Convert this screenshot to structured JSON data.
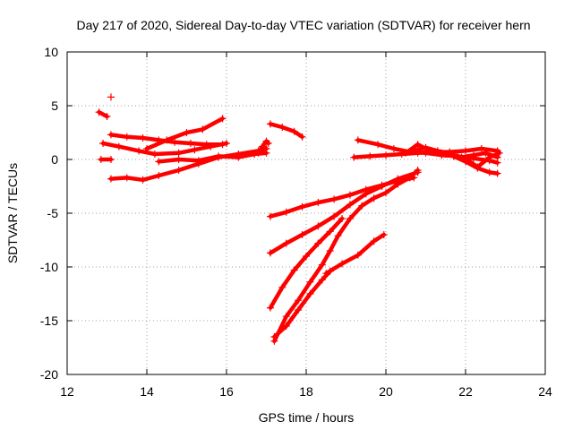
{
  "chart_data": {
    "type": "scatter",
    "title": "Day 217 of 2020, Sidereal Day-to-day VTEC variation (SDTVAR) for receiver hern",
    "xlabel": "GPS time / hours",
    "ylabel": "SDTVAR / TECUs",
    "xlim": [
      12,
      24
    ],
    "ylim": [
      -20,
      10
    ],
    "xticks": [
      "12",
      "14",
      "16",
      "18",
      "20",
      "22",
      "24"
    ],
    "yticks": [
      "-20",
      "-15",
      "-10",
      "-5",
      "0",
      "5",
      "10"
    ],
    "grid": true,
    "marker": "plus",
    "series_color": "#ff0000",
    "series": [
      {
        "x": [
          12.8,
          13.0
        ],
        "y": [
          4.4,
          4.0
        ]
      },
      {
        "x": [
          13.1
        ],
        "y": [
          5.8
        ]
      },
      {
        "x": [
          12.85,
          13.1
        ],
        "y": [
          0.0,
          0.0
        ]
      },
      {
        "x": [
          12.9,
          13.3,
          13.8,
          14.2,
          14.8,
          15.2,
          15.6,
          16.0
        ],
        "y": [
          1.5,
          1.2,
          0.8,
          0.5,
          0.6,
          0.9,
          1.2,
          1.5
        ]
      },
      {
        "x": [
          13.1,
          13.5,
          13.9,
          14.3,
          14.7,
          15.1,
          15.5,
          15.9
        ],
        "y": [
          2.3,
          2.1,
          2.0,
          1.8,
          1.6,
          1.5,
          1.4,
          1.4
        ]
      },
      {
        "x": [
          14.0,
          14.5,
          15.0,
          15.4,
          15.9
        ],
        "y": [
          1.0,
          1.8,
          2.5,
          2.8,
          3.8
        ]
      },
      {
        "x": [
          13.1,
          13.5,
          13.9,
          14.3,
          14.8,
          15.3,
          15.8,
          16.3,
          16.8,
          17.0
        ],
        "y": [
          -1.8,
          -1.7,
          -1.9,
          -1.5,
          -1.0,
          -0.4,
          0.2,
          0.5,
          0.8,
          1.0
        ]
      },
      {
        "x": [
          14.3,
          14.8,
          15.3,
          15.8,
          16.3,
          16.7,
          17.0
        ],
        "y": [
          -0.2,
          0.0,
          -0.1,
          0.3,
          0.2,
          0.5,
          0.6
        ]
      },
      {
        "x": [
          16.8,
          16.9,
          17.0,
          17.05
        ],
        "y": [
          0.6,
          1.2,
          1.7,
          1.5
        ]
      },
      {
        "x": [
          17.1,
          17.4,
          17.7,
          17.9
        ],
        "y": [
          3.3,
          3.0,
          2.6,
          2.1
        ]
      },
      {
        "x": [
          17.1,
          17.5,
          17.9,
          18.3,
          18.7,
          19.1,
          19.5,
          19.9,
          20.3,
          20.7
        ],
        "y": [
          -5.3,
          -4.9,
          -4.4,
          -4.0,
          -3.7,
          -3.3,
          -2.8,
          -2.4,
          -2.0,
          -1.7
        ]
      },
      {
        "x": [
          17.1,
          17.5,
          17.9,
          18.3,
          18.7,
          19.1,
          19.5,
          19.9,
          20.3,
          20.8
        ],
        "y": [
          -8.7,
          -7.8,
          -7.0,
          -6.2,
          -5.3,
          -4.2,
          -3.2,
          -2.5,
          -1.8,
          -1.2
        ]
      },
      {
        "x": [
          17.1,
          17.4,
          17.7,
          18.0,
          18.3,
          18.6,
          18.9
        ],
        "y": [
          -13.8,
          -11.9,
          -10.3,
          -9.0,
          -7.8,
          -6.7,
          -5.5
        ]
      },
      {
        "x": [
          17.2,
          17.5,
          17.8,
          18.1,
          18.4,
          18.6,
          18.8,
          19.1,
          19.4,
          19.7,
          20.0,
          20.3,
          20.6,
          20.8
        ],
        "y": [
          -16.9,
          -14.6,
          -13.1,
          -11.4,
          -9.8,
          -8.5,
          -7.1,
          -5.5,
          -4.3,
          -3.6,
          -3.1,
          -2.3,
          -1.7,
          -1.0
        ]
      },
      {
        "x": [
          17.2,
          17.5,
          17.8,
          18.1,
          18.4,
          18.6
        ],
        "y": [
          -16.5,
          -15.5,
          -14.0,
          -12.5,
          -11.2,
          -10.4
        ]
      },
      {
        "x": [
          18.5,
          18.9,
          19.3,
          19.7,
          19.95
        ],
        "y": [
          -10.6,
          -9.7,
          -8.9,
          -7.6,
          -7.0
        ]
      },
      {
        "x": [
          19.3,
          19.8,
          20.2,
          20.6,
          21.0,
          21.4,
          21.8,
          22.2,
          22.6,
          22.8
        ],
        "y": [
          1.8,
          1.4,
          1.0,
          0.7,
          0.6,
          0.4,
          0.3,
          0.1,
          -0.1,
          -0.3
        ]
      },
      {
        "x": [
          19.2,
          19.6,
          20.0,
          20.4,
          20.8,
          21.2,
          21.6,
          22.0,
          22.4,
          22.8
        ],
        "y": [
          0.2,
          0.3,
          0.4,
          0.5,
          0.6,
          0.7,
          0.7,
          0.8,
          1.0,
          0.8
        ]
      },
      {
        "x": [
          20.5,
          20.8,
          21.1,
          21.4,
          21.7,
          22.0,
          22.3,
          22.6,
          22.8
        ],
        "y": [
          0.6,
          1.4,
          0.8,
          0.6,
          0.3,
          -0.2,
          -0.8,
          -1.2,
          -1.3
        ]
      },
      {
        "x": [
          20.7,
          21.0,
          21.3,
          21.6,
          21.9,
          22.2,
          22.5,
          22.8
        ],
        "y": [
          0.8,
          1.1,
          0.8,
          0.5,
          0.2,
          0.4,
          0.6,
          0.2
        ]
      },
      {
        "x": [
          21.0,
          21.5,
          22.0,
          22.3,
          22.6,
          22.85
        ],
        "y": [
          0.7,
          0.5,
          0.1,
          -0.7,
          0.2,
          0.6
        ]
      }
    ]
  }
}
